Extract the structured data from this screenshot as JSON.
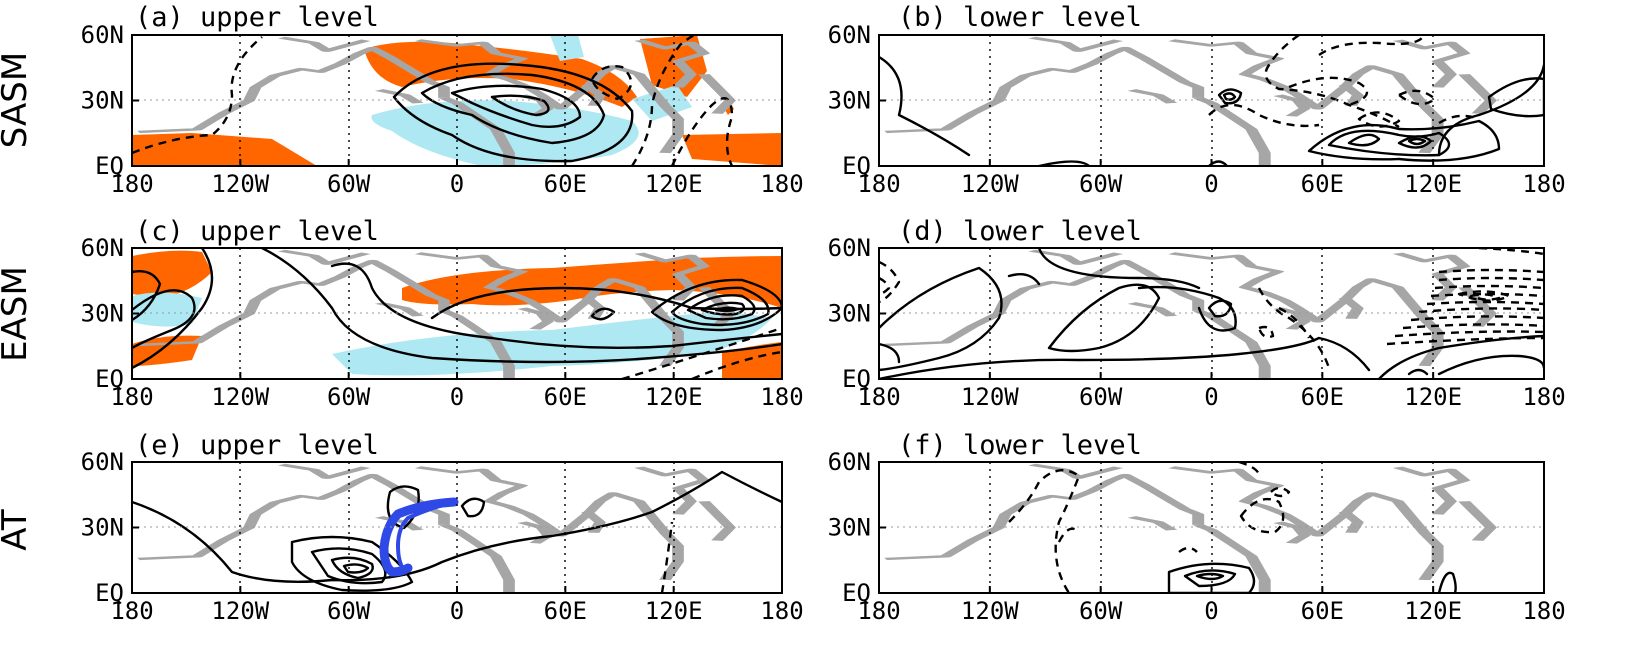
{
  "rows": [
    {
      "label": "SASM"
    },
    {
      "label": "EASM"
    },
    {
      "label": "AT"
    }
  ],
  "panels": [
    {
      "title": "(a)  upper level",
      "shading": true
    },
    {
      "title": "(b)  lower level",
      "shading": false
    },
    {
      "title": "(c)  upper level",
      "shading": true
    },
    {
      "title": "(d)  lower level",
      "shading": false
    },
    {
      "title": "(e)  upper level",
      "shading": false
    },
    {
      "title": "(f)  lower level",
      "shading": false
    }
  ],
  "axes": {
    "lon_ticks": [
      "180",
      "120W",
      "60W",
      "0",
      "60E",
      "120E",
      "180"
    ],
    "lat_ticks": [
      "60N",
      "30N",
      "EQ"
    ]
  },
  "colors": {
    "positive_shading": "#ff6600",
    "negative_shading": "#aee8f2",
    "trajectory": "#2f49e6",
    "coastline": "#a6a6a6",
    "contour": "#000000"
  }
}
